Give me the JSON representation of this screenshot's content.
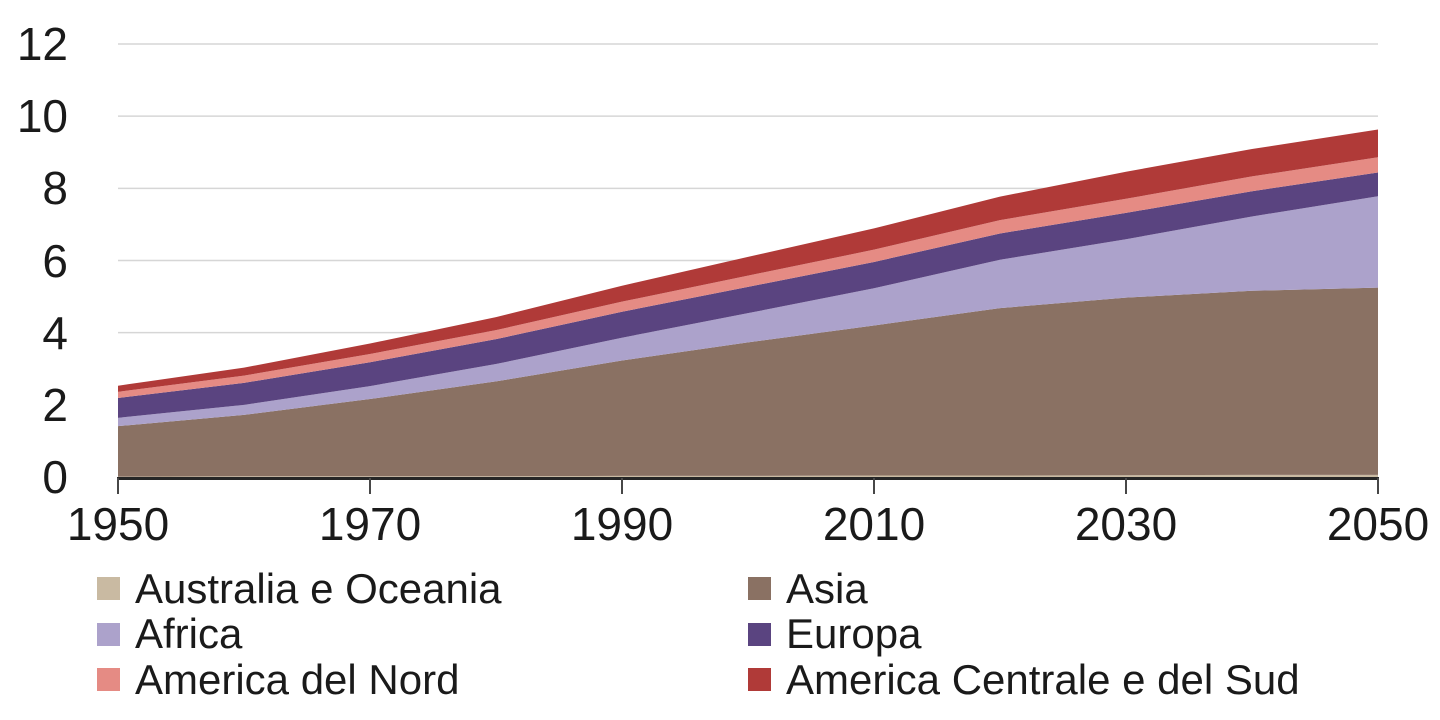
{
  "chart_data": {
    "type": "area",
    "stacked": true,
    "title": "",
    "xlabel": "",
    "ylabel": "",
    "xlim": [
      1950,
      2050
    ],
    "ylim": [
      0,
      12
    ],
    "grid": "horizontal",
    "x": [
      1950,
      1960,
      1970,
      1980,
      1990,
      2000,
      2010,
      2020,
      2030,
      2040,
      2050
    ],
    "x_tick_values": [
      1950,
      1970,
      1990,
      2010,
      2030,
      2050
    ],
    "x_tick_labels": [
      "1950",
      "1970",
      "1990",
      "2010",
      "2030",
      "2050"
    ],
    "y_tick_values": [
      12,
      10,
      8,
      6,
      4,
      2,
      0
    ],
    "y_tick_labels": [
      "12",
      "10",
      "8",
      "6",
      "4",
      "2",
      "0"
    ],
    "series": [
      {
        "name": "Australia e Oceania",
        "color": "#C9BAA2",
        "values": [
          0.01,
          0.02,
          0.02,
          0.02,
          0.03,
          0.03,
          0.04,
          0.04,
          0.05,
          0.06,
          0.06
        ]
      },
      {
        "name": "Asia",
        "color": "#8A7163",
        "values": [
          1.4,
          1.7,
          2.14,
          2.63,
          3.2,
          3.7,
          4.16,
          4.64,
          4.92,
          5.1,
          5.19
        ]
      },
      {
        "name": "Africa",
        "color": "#ACA2CB",
        "values": [
          0.23,
          0.28,
          0.36,
          0.48,
          0.63,
          0.81,
          1.03,
          1.34,
          1.62,
          2.06,
          2.53
        ]
      },
      {
        "name": "Europa",
        "color": "#5A4480",
        "values": [
          0.55,
          0.61,
          0.66,
          0.69,
          0.72,
          0.73,
          0.73,
          0.73,
          0.73,
          0.7,
          0.66
        ]
      },
      {
        "name": "America del Nord",
        "color": "#E58B84",
        "values": [
          0.17,
          0.2,
          0.23,
          0.25,
          0.28,
          0.31,
          0.34,
          0.37,
          0.39,
          0.41,
          0.42
        ]
      },
      {
        "name": "America Centrale e del Sud",
        "color": "#B03A38",
        "values": [
          0.17,
          0.22,
          0.29,
          0.36,
          0.44,
          0.52,
          0.59,
          0.65,
          0.75,
          0.76,
          0.77
        ]
      }
    ],
    "legend": {
      "position": "bottom",
      "columns": 2,
      "order": [
        [
          0,
          1
        ],
        [
          2,
          3
        ],
        [
          4,
          5
        ]
      ]
    }
  },
  "colors": {
    "background": "#FFFFFF",
    "text": "#1A1A1A",
    "gridline": "#D6D6D6",
    "axis_line": "#262626",
    "tick": "#474747"
  }
}
